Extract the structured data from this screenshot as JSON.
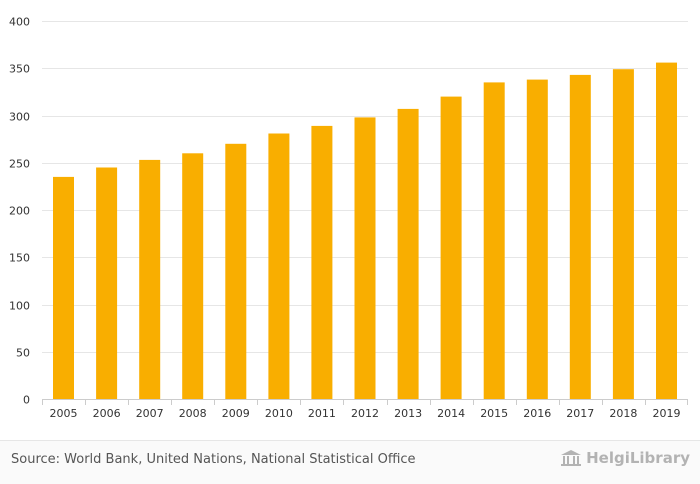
{
  "chart_data": {
    "type": "bar",
    "categories": [
      "2005",
      "2006",
      "2007",
      "2008",
      "2009",
      "2010",
      "2011",
      "2012",
      "2013",
      "2014",
      "2015",
      "2016",
      "2017",
      "2018",
      "2019"
    ],
    "values": [
      235,
      245,
      253,
      260,
      270,
      281,
      289,
      298,
      307,
      320,
      335,
      338,
      343,
      349,
      356
    ],
    "title": "",
    "xlabel": "",
    "ylabel": "",
    "ylim": [
      0,
      400
    ],
    "yticks": [
      0,
      50,
      100,
      150,
      200,
      250,
      300,
      350,
      400
    ],
    "grid": true,
    "bar_color": "#f9ae00"
  },
  "footer": {
    "source": "Source: World Bank, United Nations, National Statistical Office",
    "brand": "HelgiLibrary"
  },
  "colors": {
    "grid": "#e6e6e6",
    "tick_text": "#333333",
    "brand": "#b3b3b3"
  }
}
